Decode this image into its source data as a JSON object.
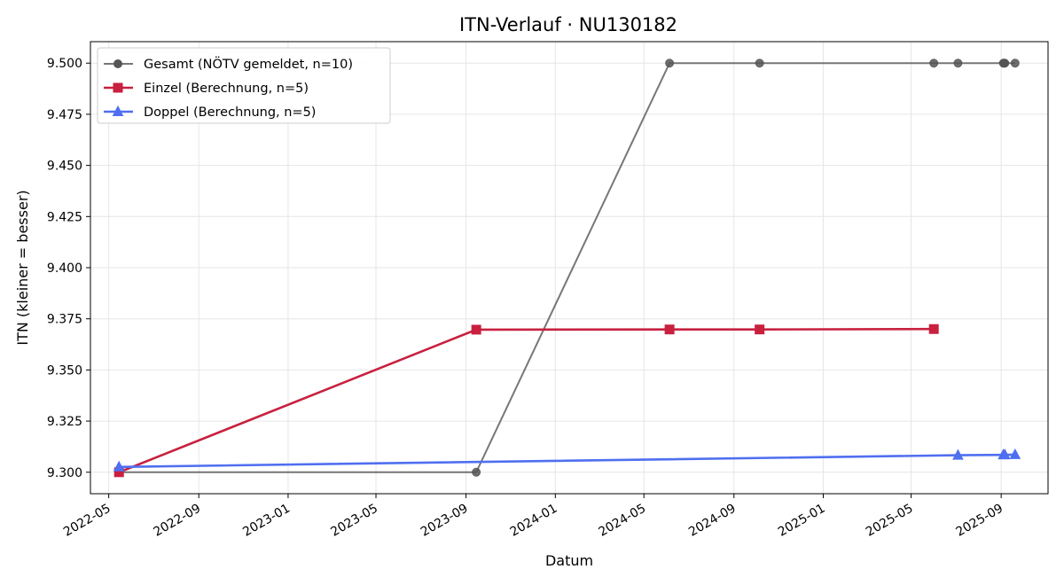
{
  "chart_data": {
    "type": "line",
    "title": "ITN-Verlauf · NU130182",
    "xlabel": "Datum",
    "ylabel": "ITN  (kleiner = besser)",
    "x_type": "date",
    "xlim": [
      "2022-04-06",
      "2025-11-04"
    ],
    "ylim": [
      9.2895,
      9.5105
    ],
    "x_ticks": [
      "2022-05-01",
      "2022-09-01",
      "2023-01-01",
      "2023-05-01",
      "2023-09-01",
      "2024-01-01",
      "2024-05-01",
      "2024-09-01",
      "2025-01-01",
      "2025-05-01",
      "2025-09-01"
    ],
    "x_tick_labels": [
      "2022-05",
      "2022-09",
      "2023-01",
      "2023-05",
      "2023-09",
      "2024-01",
      "2024-05",
      "2024-09",
      "2025-01",
      "2025-05",
      "2025-09"
    ],
    "y_ticks": [
      9.3,
      9.325,
      9.35,
      9.375,
      9.4,
      9.425,
      9.45,
      9.475,
      9.5
    ],
    "y_tick_labels": [
      "9.300",
      "9.325",
      "9.350",
      "9.375",
      "9.400",
      "9.425",
      "9.450",
      "9.475",
      "9.500"
    ],
    "grid": true,
    "legend_position": "top-left",
    "series": [
      {
        "name": "Gesamt (NÖTV gemeldet, n=10)",
        "color": "#555555",
        "marker": "circle",
        "points": [
          [
            "2022-05-15",
            9.3
          ],
          [
            "2023-09-15",
            9.3
          ],
          [
            "2024-06-05",
            9.5
          ],
          [
            "2024-10-06",
            9.5
          ],
          [
            "2025-06-01",
            9.5
          ],
          [
            "2025-07-04",
            9.5
          ],
          [
            "2025-09-04",
            9.5
          ],
          [
            "2025-09-06",
            9.5
          ],
          [
            "2025-09-05",
            9.5
          ],
          [
            "2025-09-20",
            9.5
          ]
        ]
      },
      {
        "name": "Einzel (Berechnung, n=5)",
        "color": "#c8203e",
        "marker": "square",
        "points": [
          [
            "2022-05-15",
            9.3
          ],
          [
            "2023-09-15",
            9.3697
          ],
          [
            "2024-06-05",
            9.3698
          ],
          [
            "2024-10-06",
            9.3698
          ],
          [
            "2025-06-01",
            9.37
          ]
        ]
      },
      {
        "name": "Doppel (Berechnung, n=5)",
        "color": "#4f6ff0",
        "marker": "triangle",
        "points": [
          [
            "2022-05-15",
            9.3026
          ],
          [
            "2025-07-04",
            9.3083
          ],
          [
            "2025-09-04",
            9.3085
          ],
          [
            "2025-09-06",
            9.3085
          ],
          [
            "2025-09-20",
            9.3086
          ]
        ]
      }
    ]
  }
}
